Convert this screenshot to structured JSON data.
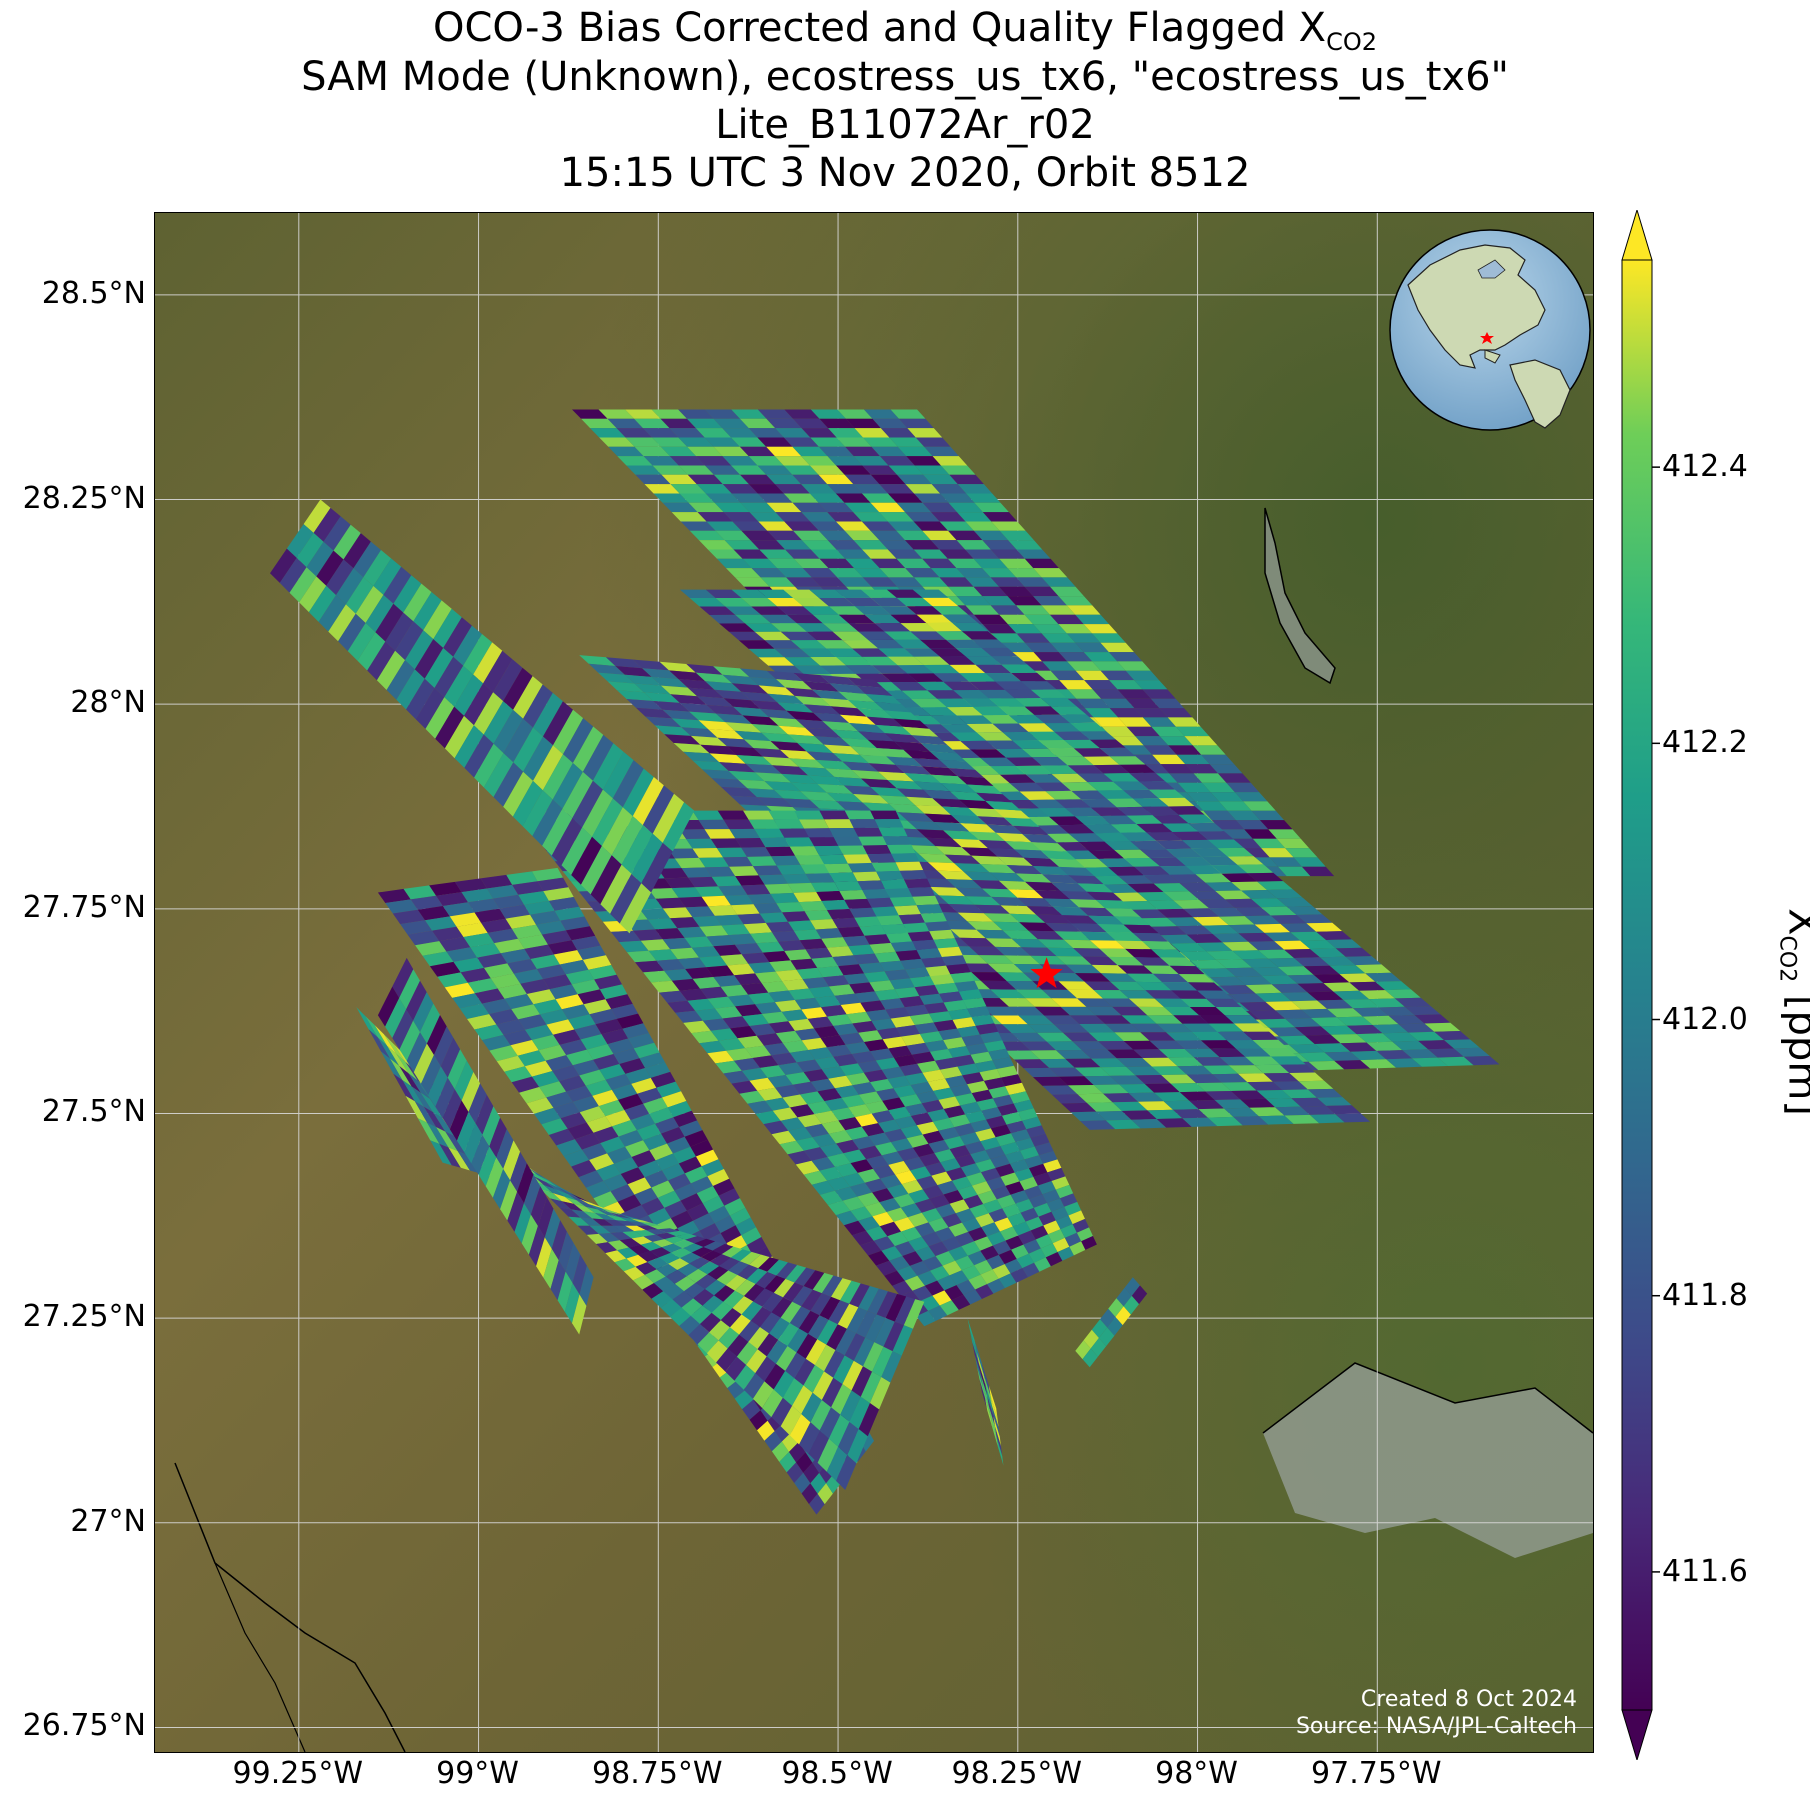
{
  "title": {
    "line1_prefix": "OCO-3 Bias Corrected and Quality Flagged X",
    "line1_sub": "CO2",
    "line2": "SAM Mode (Unknown), ecostress_us_tx6, \"ecostress_us_tx6\"",
    "line3": "Lite_B11072Ar_r02",
    "line4": "15:15 UTC 3 Nov 2020, Orbit 8512"
  },
  "axes": {
    "lat_ticks": [
      "28.5°N",
      "28.25°N",
      "28°N",
      "27.75°N",
      "27.5°N",
      "27.25°N",
      "27°N",
      "26.75°N"
    ],
    "lon_ticks": [
      "99.25°W",
      "99°W",
      "98.75°W",
      "98.5°W",
      "98.25°W",
      "98°W",
      "97.75°W"
    ]
  },
  "map": {
    "lat_range": [
      26.72,
      28.6
    ],
    "lon_range": [
      -99.45,
      -97.45
    ],
    "target_marker": {
      "lat": 27.67,
      "lon": -98.21,
      "color": "#ff0000"
    },
    "grid": true
  },
  "colorbar": {
    "label_prefix": "X",
    "label_sub": "CO2",
    "label_suffix": " [ppm]",
    "ticks": [
      "411.6",
      "411.8",
      "412.0",
      "412.2",
      "412.4"
    ],
    "range": [
      411.5,
      412.55
    ],
    "colormap": "viridis",
    "extend": "both"
  },
  "credit": {
    "line1": "Created 8 Oct 2024",
    "line2": "Source: NASA/JPL-Caltech"
  },
  "chart_data": {
    "type": "heatmap",
    "variable": "XCO2",
    "units": "ppm",
    "value_range": [
      411.5,
      412.55
    ],
    "swaths": [
      {
        "corners": [
          [
            -98.87,
            28.36
          ],
          [
            -98.39,
            28.36
          ],
          [
            -97.81,
            27.79
          ],
          [
            -98.24,
            27.79
          ]
        ]
      },
      {
        "corners": [
          [
            -98.72,
            28.14
          ],
          [
            -98.36,
            28.14
          ],
          [
            -97.58,
            27.56
          ],
          [
            -97.94,
            27.55
          ]
        ]
      },
      {
        "corners": [
          [
            -98.86,
            28.06
          ],
          [
            -98.45,
            28.03
          ],
          [
            -97.76,
            27.49
          ],
          [
            -98.15,
            27.48
          ]
        ]
      },
      {
        "corners": [
          [
            -98.95,
            27.87
          ],
          [
            -98.42,
            27.87
          ],
          [
            -98.14,
            27.34
          ],
          [
            -98.38,
            27.24
          ]
        ]
      },
      {
        "corners": [
          [
            -99.22,
            28.25
          ],
          [
            -99.29,
            28.16
          ],
          [
            -98.79,
            27.72
          ],
          [
            -98.7,
            27.87
          ]
        ]
      },
      {
        "corners": [
          [
            -99.14,
            27.77
          ],
          [
            -98.89,
            27.8
          ],
          [
            -98.45,
            27.1
          ],
          [
            -98.53,
            27.01
          ]
        ]
      },
      {
        "corners": [
          [
            -99.17,
            27.63
          ],
          [
            -99.05,
            27.44
          ],
          [
            -98.38,
            27.27
          ],
          [
            -98.49,
            27.04
          ]
        ]
      },
      {
        "corners": [
          [
            -99.1,
            27.69
          ],
          [
            -99.14,
            27.62
          ],
          [
            -98.86,
            27.23
          ],
          [
            -98.84,
            27.3
          ]
        ]
      },
      {
        "corners": [
          [
            -98.32,
            27.25
          ],
          [
            -98.28,
            27.14
          ],
          [
            -98.27,
            27.07
          ],
          [
            -98.3,
            27.16
          ]
        ]
      },
      {
        "corners": [
          [
            -98.09,
            27.3
          ],
          [
            -98.07,
            27.28
          ],
          [
            -98.15,
            27.19
          ],
          [
            -98.17,
            27.21
          ]
        ]
      }
    ]
  }
}
